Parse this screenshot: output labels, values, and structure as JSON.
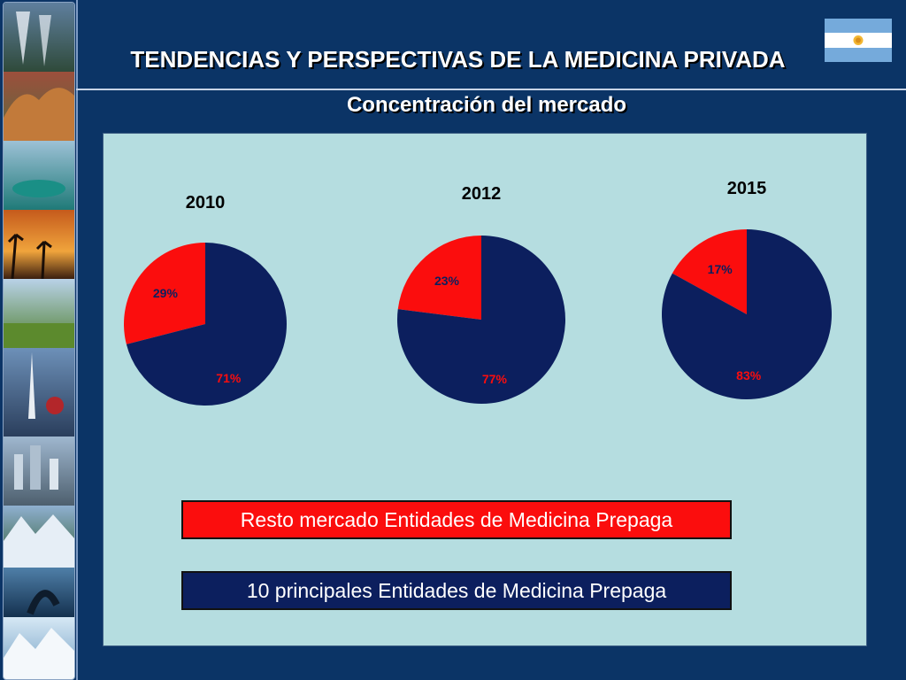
{
  "slide": {
    "title": "TENDENCIAS Y PERSPECTIVAS DE LA MEDICINA PRIVADA",
    "subtitle": "Concentración del mercado"
  },
  "colors": {
    "background": "#0b3466",
    "panel": "#b5dde0",
    "top10": "#0c1f5e",
    "resto": "#fb0d0d"
  },
  "chart_data": {
    "type": "pie",
    "series": [
      {
        "name": "Resto mercado Entidades de Medicina Prepaga",
        "color": "#fb0d0d"
      },
      {
        "name": "10 principales Entidades de Medicina Prepaga",
        "color": "#0c1f5e"
      }
    ],
    "charts": [
      {
        "title": "2010",
        "slices": [
          {
            "series": "Resto mercado Entidades de Medicina Prepaga",
            "value": 29,
            "label": "29%"
          },
          {
            "series": "10 principales Entidades de Medicina Prepaga",
            "value": 71,
            "label": "71%"
          }
        ]
      },
      {
        "title": "2012",
        "slices": [
          {
            "series": "Resto mercado Entidades de Medicina Prepaga",
            "value": 23,
            "label": "23%"
          },
          {
            "series": "10 principales Entidades de Medicina Prepaga",
            "value": 77,
            "label": "77%"
          }
        ]
      },
      {
        "title": "2015",
        "slices": [
          {
            "series": "Resto mercado Entidades de Medicina Prepaga",
            "value": 17,
            "label": "17%"
          },
          {
            "series": "10 principales Entidades de Medicina Prepaga",
            "value": 83,
            "label": "83%"
          }
        ]
      }
    ],
    "legend": {
      "placement": "bottom",
      "items": [
        {
          "label": "Resto mercado Entidades de Medicina Prepaga",
          "color": "#fb0d0d"
        },
        {
          "label": "10 principales Entidades de Medicina Prepaga",
          "color": "#0c1f5e"
        }
      ]
    }
  }
}
